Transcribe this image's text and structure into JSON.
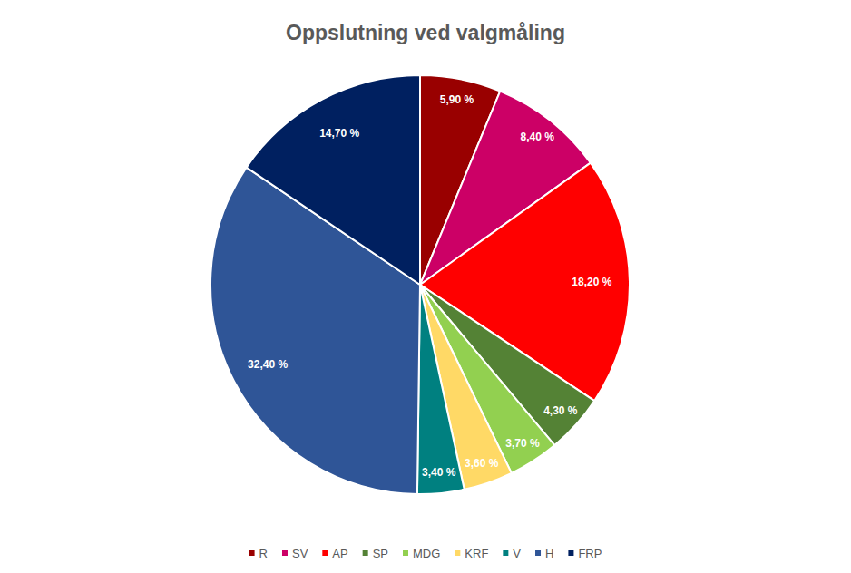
{
  "chart_data": {
    "type": "pie",
    "title": "Oppslutning ved valgmåling",
    "categories": [
      "R",
      "SV",
      "AP",
      "SP",
      "MDG",
      "KRF",
      "V",
      "H",
      "FRP"
    ],
    "values": [
      5.9,
      8.4,
      18.2,
      4.3,
      3.7,
      3.6,
      3.4,
      32.4,
      14.7
    ],
    "value_labels": [
      "5,90 %",
      "8,40 %",
      "18,20 %",
      "4,30 %",
      "3,70 %",
      "3,60 %",
      "3,40 %",
      "32,40 %",
      "14,70 %"
    ],
    "colors": [
      "#990000",
      "#cc0066",
      "#ff0000",
      "#548235",
      "#92d050",
      "#ffd966",
      "#008080",
      "#2f5597",
      "#002060"
    ],
    "data_labels": true,
    "legend": "bottom"
  }
}
